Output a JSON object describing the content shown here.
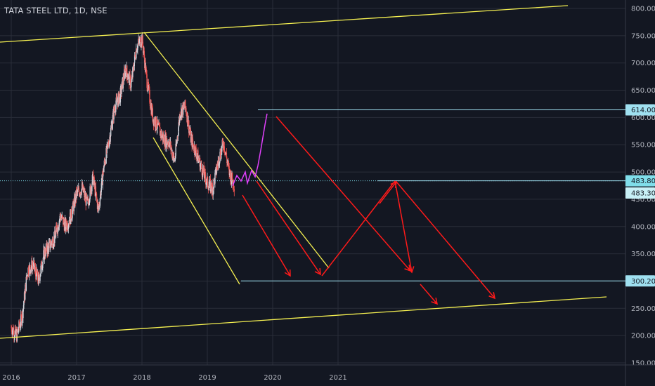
{
  "chart_data": {
    "type": "candlestick",
    "title": "TATA STEEL LTD, 1D, NSE",
    "x_tick_labels": [
      "2016",
      "2017",
      "2018",
      "2019",
      "2020",
      "2021"
    ],
    "y_tick_labels": [
      "150.00",
      "200.00",
      "250.00",
      "300.00",
      "350.00",
      "400.00",
      "450.00",
      "500.00",
      "550.00",
      "600.00",
      "650.00",
      "700.00",
      "750.00",
      "800.00"
    ],
    "y_range": [
      150,
      810
    ],
    "price_tags": [
      {
        "label": "614.00",
        "value": 614.0,
        "color": "#9fe0f0",
        "text_color": "#131722"
      },
      {
        "label": "483.80",
        "value": 483.8,
        "color": "#80deea",
        "text_color": "#131722"
      },
      {
        "label": "483.30",
        "value": 483.3,
        "color": "#c8f0f6",
        "text_color": "#131722"
      },
      {
        "label": "300.20",
        "value": 300.2,
        "color": "#9fe0f0",
        "text_color": "#131722"
      }
    ],
    "price_series": {
      "description": "daily close, approximate",
      "points": [
        [
          "2016-01",
          215
        ],
        [
          "2016-02",
          200
        ],
        [
          "2016-03",
          235
        ],
        [
          "2016-04",
          320
        ],
        [
          "2016-05",
          330
        ],
        [
          "2016-06",
          300
        ],
        [
          "2016-07",
          350
        ],
        [
          "2016-08",
          365
        ],
        [
          "2016-09",
          380
        ],
        [
          "2016-10",
          420
        ],
        [
          "2016-11",
          400
        ],
        [
          "2016-12",
          420
        ],
        [
          "2017-01",
          460
        ],
        [
          "2017-02",
          470
        ],
        [
          "2017-03",
          440
        ],
        [
          "2017-04",
          490
        ],
        [
          "2017-05",
          430
        ],
        [
          "2017-06",
          510
        ],
        [
          "2017-07",
          560
        ],
        [
          "2017-08",
          620
        ],
        [
          "2017-09",
          640
        ],
        [
          "2017-10",
          690
        ],
        [
          "2017-11",
          660
        ],
        [
          "2017-12",
          730
        ],
        [
          "2018-01",
          745
        ],
        [
          "2018-02",
          660
        ],
        [
          "2018-03",
          600
        ],
        [
          "2018-04",
          580
        ],
        [
          "2018-05",
          560
        ],
        [
          "2018-06",
          555
        ],
        [
          "2018-07",
          520
        ],
        [
          "2018-08",
          610
        ],
        [
          "2018-09",
          620
        ],
        [
          "2018-10",
          560
        ],
        [
          "2018-11",
          535
        ],
        [
          "2018-12",
          505
        ],
        [
          "2019-01",
          480
        ],
        [
          "2019-02",
          470
        ],
        [
          "2019-03",
          520
        ],
        [
          "2019-04",
          555
        ],
        [
          "2019-05",
          500
        ],
        [
          "2019-06",
          475
        ]
      ]
    },
    "current_price": 483.8,
    "colors": {
      "background": "#131722",
      "grid": "#2a2e39",
      "up_candle": "#d1d4dc",
      "down_candle": "#ef5350",
      "trend_yellow": "#f5f051",
      "projection_red": "#ff1a1a",
      "projection_magenta": "#e040fb",
      "horizontal_line": "#9fe0f0"
    }
  }
}
